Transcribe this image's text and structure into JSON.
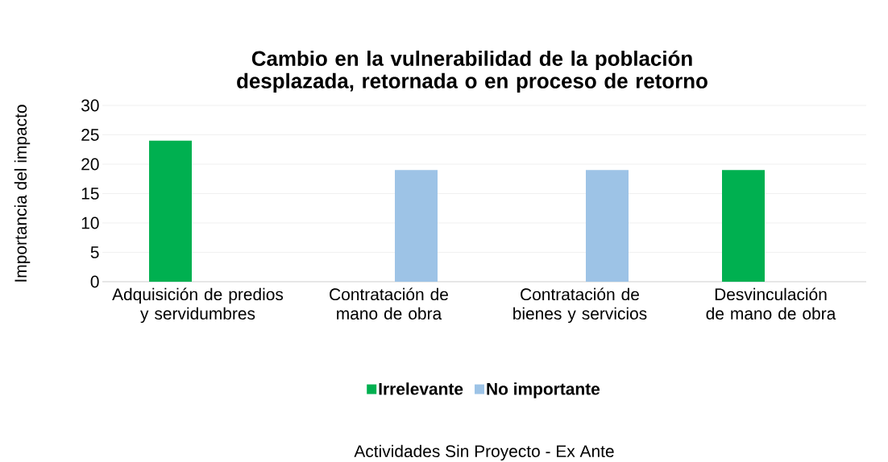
{
  "chart_data": {
    "type": "bar",
    "title": "Cambio en la vulnerabilidad de la población desplazada, retornada o en proceso de retorno",
    "annotations": [
      "Actividades Sin Proyecto - Ex Ante"
    ],
    "ylabel": "Importancia del impacto",
    "categories": [
      "Adquisición de predios y servidumbres",
      "Contratación de mano de obra",
      "Contratación de bienes y servicios",
      "Desvinculación de mano de obra"
    ],
    "series": [
      {
        "name": "Irrelevante",
        "color": "#00b050",
        "values": [
          24,
          null,
          null,
          19
        ]
      },
      {
        "name": "No importante",
        "color": "#9dc3e6",
        "values": [
          null,
          19,
          19,
          null
        ]
      }
    ],
    "ylim": [
      0,
      30
    ],
    "yticks": [
      0,
      5,
      10,
      15,
      20,
      25,
      30
    ],
    "grid": "y",
    "legend": "bottom"
  }
}
